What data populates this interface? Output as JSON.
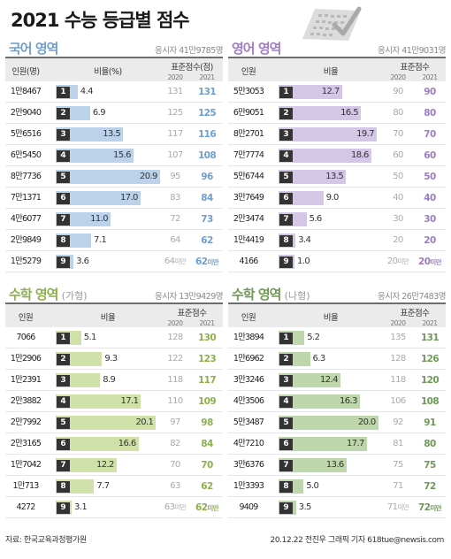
{
  "title": "2021 수능 등급별 점수",
  "header_labels": {
    "count_kor": "인원(명)",
    "count": "인원",
    "ratio_kor": "비율(%)",
    "ratio": "비율",
    "std_score_kor": "표준점수(점)",
    "std_score": "표준점수",
    "year_prev": "2020",
    "year_cur": "2021"
  },
  "footer": {
    "source": "자료: 한국교육과정평가원",
    "credit": "20.12.22 전진우 그래픽 기자 618tue@newsis.com"
  },
  "chart_data": [
    {
      "type": "table",
      "title": "국어 영역",
      "subtitle": "",
      "applicants": "응시자 41만9785명",
      "accent": "#6f9fce",
      "bar_color": "#bcd2ea",
      "x_max": 22,
      "rows": [
        {
          "grade": "1",
          "count": "1만8467",
          "ratio": 4.4,
          "label": "4.4",
          "s2020": "131",
          "s2021": "131"
        },
        {
          "grade": "2",
          "count": "2만9040",
          "ratio": 6.9,
          "label": "6.9",
          "s2020": "125",
          "s2021": "125"
        },
        {
          "grade": "3",
          "count": "5만6516",
          "ratio": 13.5,
          "label": "13.5",
          "s2020": "117",
          "s2021": "116"
        },
        {
          "grade": "4",
          "count": "6만5450",
          "ratio": 15.6,
          "label": "15.6",
          "s2020": "107",
          "s2021": "108"
        },
        {
          "grade": "5",
          "count": "8만7736",
          "ratio": 20.9,
          "label": "20.9",
          "s2020": "95",
          "s2021": "96"
        },
        {
          "grade": "6",
          "count": "7만1371",
          "ratio": 17.0,
          "label": "17.0",
          "s2020": "83",
          "s2021": "84"
        },
        {
          "grade": "7",
          "count": "4만6077",
          "ratio": 11.0,
          "label": "11.0",
          "s2020": "72",
          "s2021": "73"
        },
        {
          "grade": "8",
          "count": "2만9849",
          "ratio": 7.1,
          "label": "7.1",
          "s2020": "64",
          "s2021": "62"
        },
        {
          "grade": "9",
          "count": "1만5279",
          "ratio": 3.6,
          "label": "3.6",
          "s2020": "64",
          "s2020_suffix": "미만",
          "s2021": "62",
          "s2021_suffix": "미만"
        }
      ]
    },
    {
      "type": "table",
      "title": "영어 영역",
      "subtitle": "",
      "applicants": "응시자 41만9031명",
      "accent": "#a07cc2",
      "bar_color": "#d3c6e6",
      "x_max": 22,
      "rows": [
        {
          "grade": "1",
          "count": "5만3053",
          "ratio": 12.7,
          "label": "12.7",
          "s2020": "90",
          "s2021": "90"
        },
        {
          "grade": "2",
          "count": "6만9051",
          "ratio": 16.5,
          "label": "16.5",
          "s2020": "80",
          "s2021": "80"
        },
        {
          "grade": "3",
          "count": "8만2701",
          "ratio": 19.7,
          "label": "19.7",
          "s2020": "70",
          "s2021": "70"
        },
        {
          "grade": "4",
          "count": "7만7774",
          "ratio": 18.6,
          "label": "18.6",
          "s2020": "60",
          "s2021": "60"
        },
        {
          "grade": "5",
          "count": "5만6744",
          "ratio": 13.5,
          "label": "13.5",
          "s2020": "50",
          "s2021": "50"
        },
        {
          "grade": "6",
          "count": "3만7649",
          "ratio": 9.0,
          "label": "9.0",
          "s2020": "40",
          "s2021": "40"
        },
        {
          "grade": "7",
          "count": "2만3474",
          "ratio": 5.6,
          "label": "5.6",
          "s2020": "30",
          "s2021": "30"
        },
        {
          "grade": "8",
          "count": "1만4419",
          "ratio": 3.4,
          "label": "3.4",
          "s2020": "20",
          "s2021": "20"
        },
        {
          "grade": "9",
          "count": "4166",
          "ratio": 1.0,
          "label": "1.0",
          "s2020": "20",
          "s2020_suffix": "미만",
          "s2021": "20",
          "s2021_suffix": "미만"
        }
      ]
    },
    {
      "type": "table",
      "title": "수학 영역",
      "subtitle": "(가형)",
      "applicants": "응시자 13만9429명",
      "accent": "#8db04f",
      "bar_color": "#cfe0a8",
      "x_max": 22,
      "rows": [
        {
          "grade": "1",
          "count": "7066",
          "ratio": 5.1,
          "label": "5.1",
          "s2020": "128",
          "s2021": "130"
        },
        {
          "grade": "2",
          "count": "1만2906",
          "ratio": 9.3,
          "label": "9.3",
          "s2020": "122",
          "s2021": "123"
        },
        {
          "grade": "3",
          "count": "1만2391",
          "ratio": 8.9,
          "label": "8.9",
          "s2020": "118",
          "s2021": "117"
        },
        {
          "grade": "4",
          "count": "2만3882",
          "ratio": 17.1,
          "label": "17.1",
          "s2020": "110",
          "s2021": "109"
        },
        {
          "grade": "5",
          "count": "2만7992",
          "ratio": 20.1,
          "label": "20.1",
          "s2020": "97",
          "s2021": "98"
        },
        {
          "grade": "6",
          "count": "2만3165",
          "ratio": 16.6,
          "label": "16.6",
          "s2020": "82",
          "s2021": "84"
        },
        {
          "grade": "7",
          "count": "1만7042",
          "ratio": 12.2,
          "label": "12.2",
          "s2020": "70",
          "s2021": "70"
        },
        {
          "grade": "8",
          "count": "1만713",
          "ratio": 7.7,
          "label": "7.7",
          "s2020": "63",
          "s2021": "62"
        },
        {
          "grade": "9",
          "count": "4272",
          "ratio": 3.1,
          "label": "3.1",
          "s2020": "63",
          "s2020_suffix": "미만",
          "s2021": "62",
          "s2021_suffix": "미만"
        }
      ]
    },
    {
      "type": "table",
      "title": "수학 영역",
      "subtitle": "(나형)",
      "applicants": "응시자 26만7483명",
      "accent": "#6f9a55",
      "bar_color": "#bdd6ab",
      "x_max": 22,
      "rows": [
        {
          "grade": "1",
          "count": "1만3894",
          "ratio": 5.2,
          "label": "5.2",
          "s2020": "135",
          "s2021": "131"
        },
        {
          "grade": "2",
          "count": "1만6962",
          "ratio": 6.3,
          "label": "6.3",
          "s2020": "128",
          "s2021": "126"
        },
        {
          "grade": "3",
          "count": "3만3246",
          "ratio": 12.4,
          "label": "12.4",
          "s2020": "118",
          "s2021": "120"
        },
        {
          "grade": "4",
          "count": "4만3506",
          "ratio": 16.3,
          "label": "16.3",
          "s2020": "106",
          "s2021": "108"
        },
        {
          "grade": "5",
          "count": "5만3487",
          "ratio": 20.0,
          "label": "20.0",
          "s2020": "92",
          "s2021": "91"
        },
        {
          "grade": "6",
          "count": "4만7210",
          "ratio": 17.7,
          "label": "17.7",
          "s2020": "81",
          "s2021": "80"
        },
        {
          "grade": "7",
          "count": "3만6376",
          "ratio": 13.6,
          "label": "13.6",
          "s2020": "75",
          "s2021": "75"
        },
        {
          "grade": "8",
          "count": "1만3393",
          "ratio": 5.0,
          "label": "5.0",
          "s2020": "71",
          "s2021": "72"
        },
        {
          "grade": "9",
          "count": "9409",
          "ratio": 3.5,
          "label": "3.5",
          "s2020": "71",
          "s2020_suffix": "미만",
          "s2021": "72",
          "s2021_suffix": "미만"
        }
      ]
    }
  ]
}
